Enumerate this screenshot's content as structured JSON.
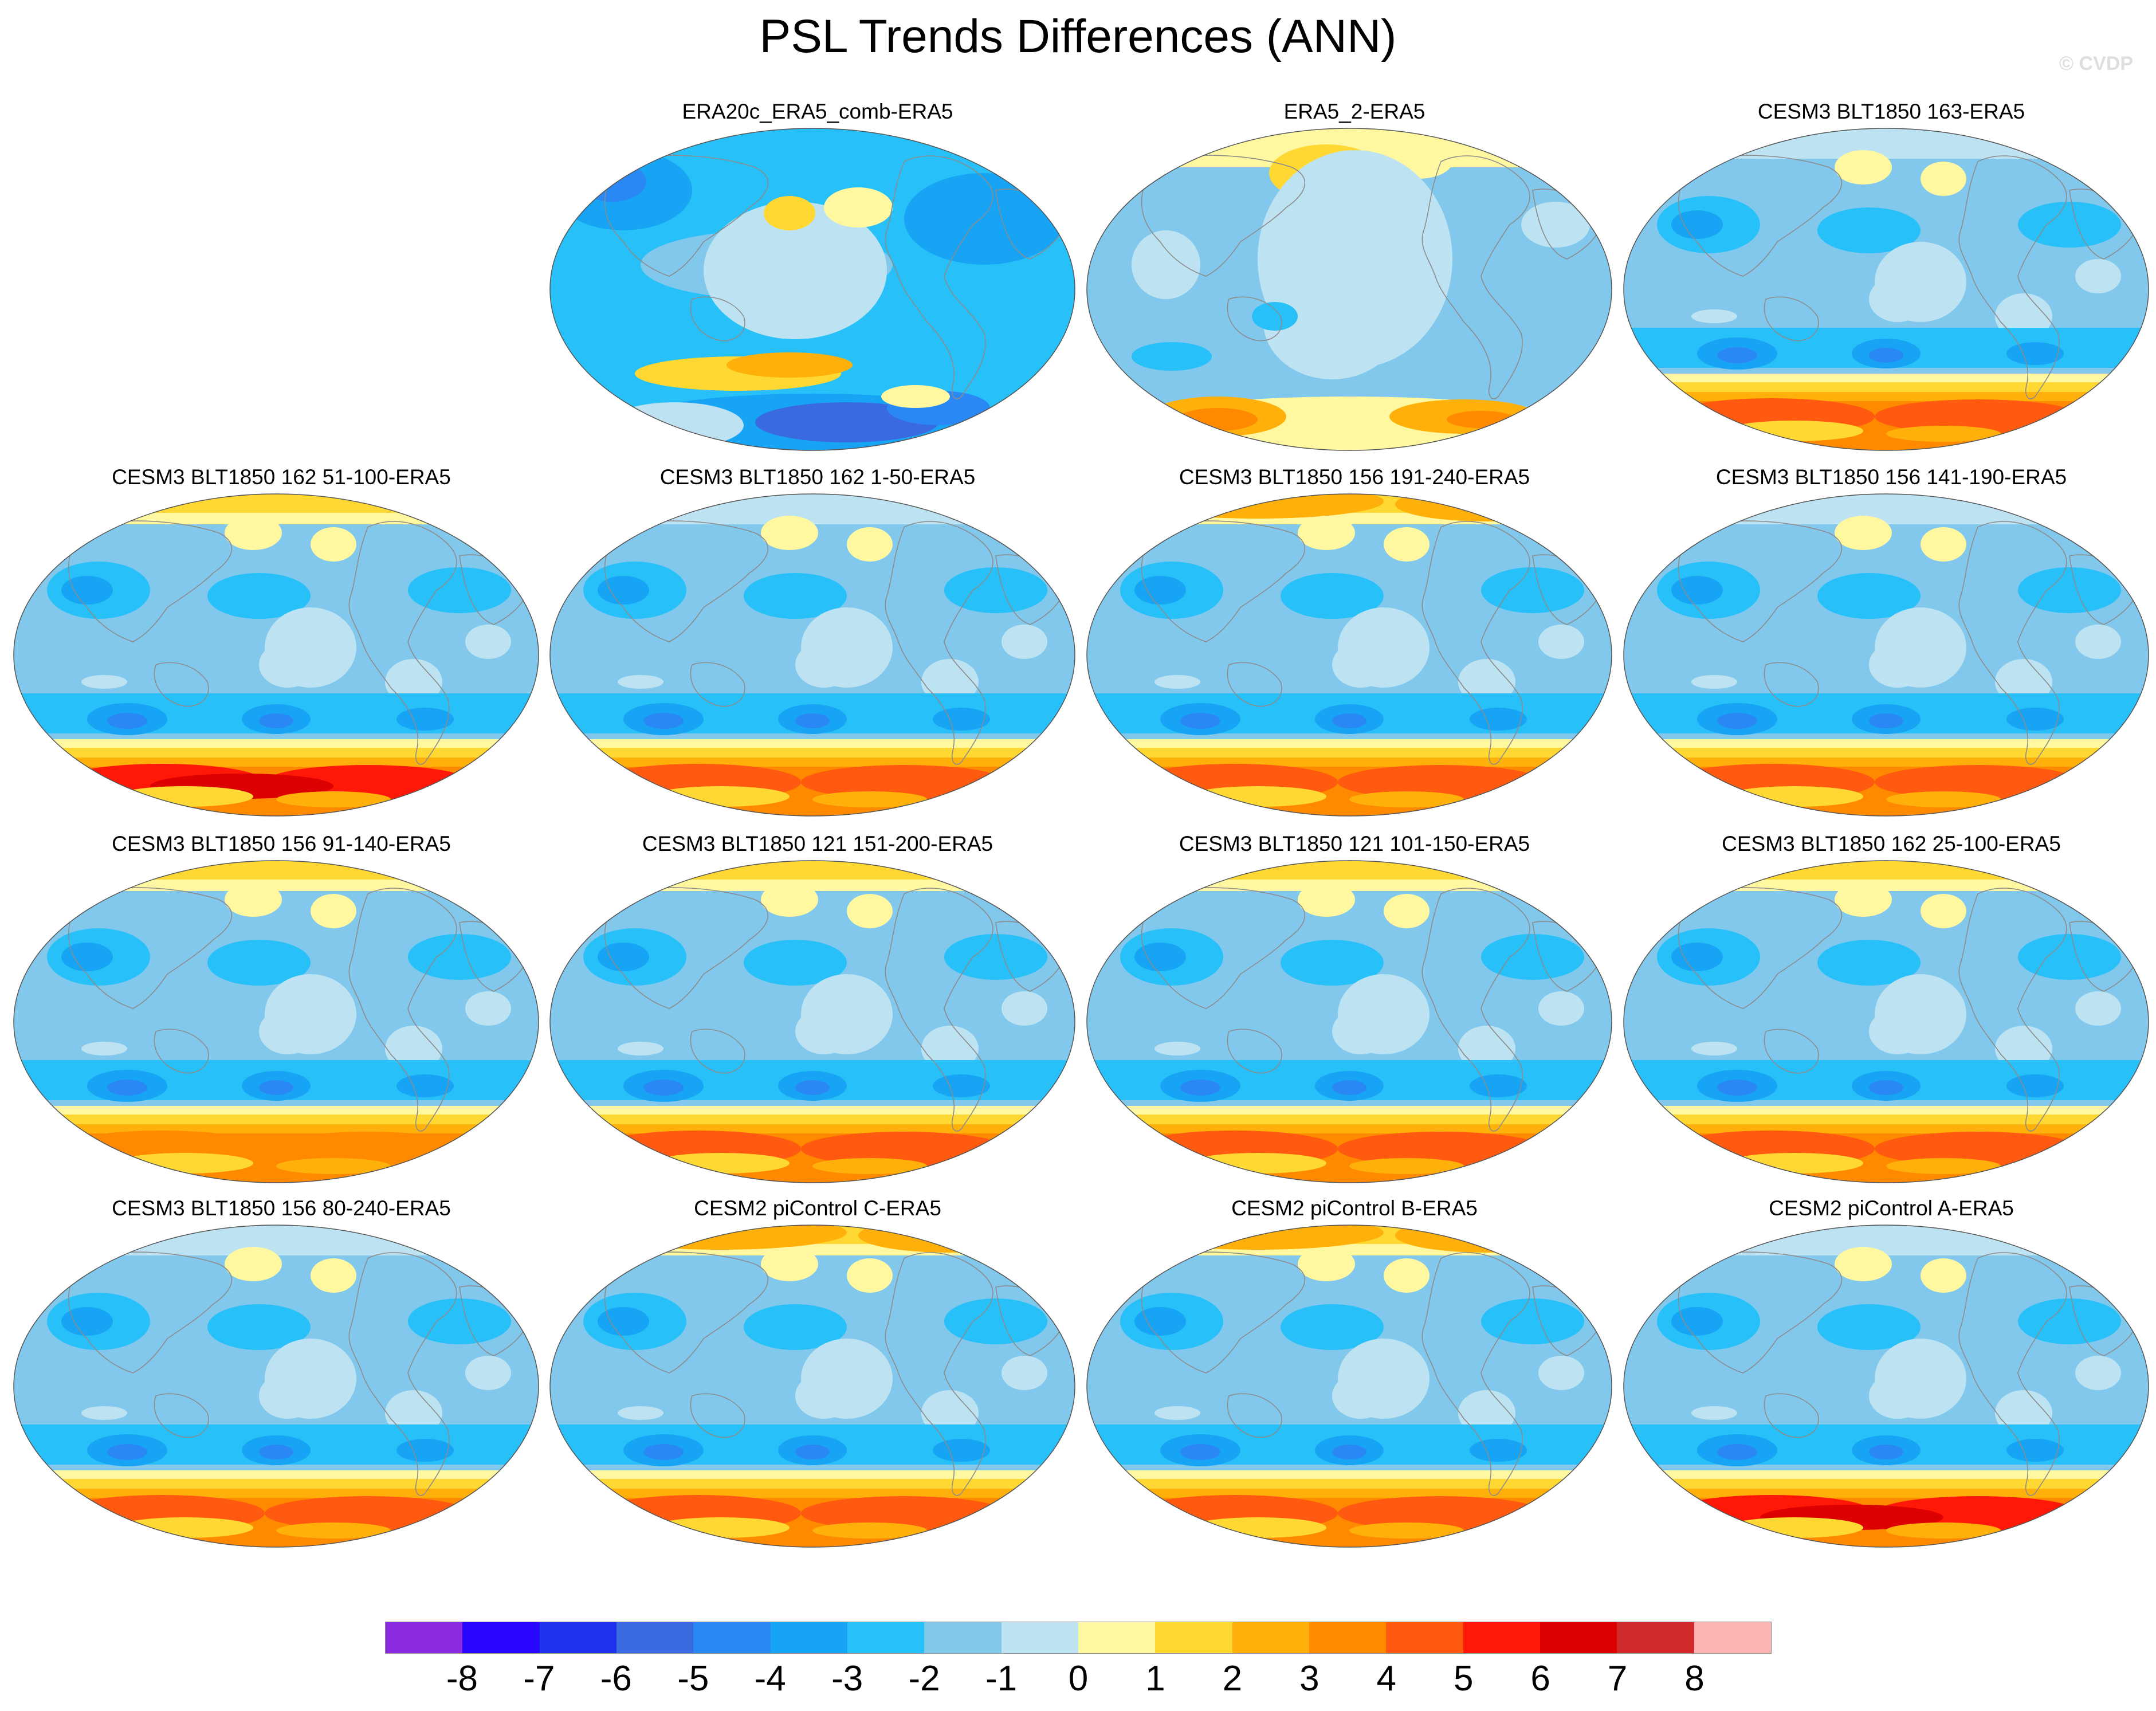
{
  "title": "PSL Trends Differences (ANN)",
  "credit": "© CVDP",
  "panels": [
    {
      "title": "ERA20c_ERA5_comb-ERA5",
      "row": 0,
      "col": 1,
      "style": "blue",
      "north": 3,
      "south": -4,
      "tropics": 0
    },
    {
      "title": "ERA5_2-ERA5",
      "row": 0,
      "col": 2,
      "style": "warm",
      "north": 1,
      "south": 3,
      "tropics": 1
    },
    {
      "title": "CESM3 BLT1850 163-ERA5",
      "row": 0,
      "col": 3,
      "style": "model",
      "north": 1,
      "south": 5,
      "tropics": 0
    },
    {
      "title": "CESM3 BLT1850 162 51-100-ERA5",
      "row": 1,
      "col": 0,
      "style": "model",
      "north": 2,
      "south": 6,
      "tropics": 0
    },
    {
      "title": "CESM3 BLT1850 162 1-50-ERA5",
      "row": 1,
      "col": 1,
      "style": "model",
      "north": 1,
      "south": 5,
      "tropics": 0
    },
    {
      "title": "CESM3 BLT1850 156 191-240-ERA5",
      "row": 1,
      "col": 2,
      "style": "model",
      "north": 3,
      "south": 5,
      "tropics": 0
    },
    {
      "title": "CESM3 BLT1850 156 141-190-ERA5",
      "row": 1,
      "col": 3,
      "style": "model",
      "north": 1,
      "south": 5,
      "tropics": 0
    },
    {
      "title": "CESM3 BLT1850 156 91-140-ERA5",
      "row": 2,
      "col": 0,
      "style": "model",
      "north": 2,
      "south": 4,
      "tropics": 0
    },
    {
      "title": "CESM3 BLT1850 121 151-200-ERA5",
      "row": 2,
      "col": 1,
      "style": "model",
      "north": 2,
      "south": 5,
      "tropics": 0
    },
    {
      "title": "CESM3 BLT1850 121 101-150-ERA5",
      "row": 2,
      "col": 2,
      "style": "model",
      "north": 2,
      "south": 5,
      "tropics": 0
    },
    {
      "title": "CESM3 BLT1850 162 25-100-ERA5",
      "row": 2,
      "col": 3,
      "style": "model",
      "north": 2,
      "south": 5,
      "tropics": 0
    },
    {
      "title": "CESM3 BLT1850 156 80-240-ERA5",
      "row": 3,
      "col": 0,
      "style": "model",
      "north": 1,
      "south": 5,
      "tropics": 0
    },
    {
      "title": "CESM2 piControl C-ERA5",
      "row": 3,
      "col": 1,
      "style": "model",
      "north": 3,
      "south": 5,
      "tropics": 0
    },
    {
      "title": "CESM2 piControl B-ERA5",
      "row": 3,
      "col": 2,
      "style": "model",
      "north": 3,
      "south": 5,
      "tropics": 0
    },
    {
      "title": "CESM2 piControl A-ERA5",
      "row": 3,
      "col": 3,
      "style": "model",
      "north": 1,
      "south": 6,
      "tropics": 0
    }
  ],
  "colorbar": {
    "colors": [
      "#8a2be2",
      "#2a08ff",
      "#2233ee",
      "#3a6ae0",
      "#2a88f5",
      "#18a4f5",
      "#27c0f8",
      "#82c8ec",
      "#bde3f2",
      "#fff8a0",
      "#ffd834",
      "#ffb00a",
      "#ff8a00",
      "#ff5a10",
      "#ff1808",
      "#dd0000",
      "#d02a2a",
      "#ffb4b4"
    ],
    "labels": [
      "-8",
      "-7",
      "-6",
      "-5",
      "-4",
      "-3",
      "-2",
      "-1",
      "0",
      "1",
      "2",
      "3",
      "4",
      "5",
      "6",
      "7",
      "8"
    ]
  }
}
